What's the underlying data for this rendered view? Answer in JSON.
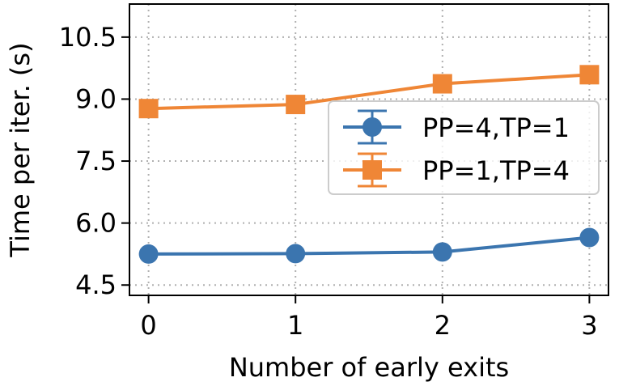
{
  "chart_data": {
    "type": "line",
    "title": "",
    "xlabel": "Number of early exits",
    "ylabel": "Time per iter. (s)",
    "x": [
      0,
      1,
      2,
      3
    ],
    "xticks": [
      "0",
      "1",
      "2",
      "3"
    ],
    "xlim": [
      -0.13,
      3.13
    ],
    "yticks": [
      "4.5",
      "6.0",
      "7.5",
      "9.0",
      "10.5"
    ],
    "ytick_values": [
      4.5,
      6.0,
      7.5,
      9.0,
      10.5
    ],
    "ylim": [
      4.25,
      11.3
    ],
    "grid": true,
    "legend_position": "center-right",
    "series": [
      {
        "name": "PP=4,TP=1",
        "values": [
          5.25,
          5.26,
          5.3,
          5.65
        ],
        "color": "#3b75af",
        "marker": "circle",
        "error_bars": true
      },
      {
        "name": "PP=1,TP=4",
        "values": [
          8.77,
          8.87,
          9.37,
          9.59
        ],
        "color": "#ef8636",
        "marker": "square",
        "error_bars": true
      }
    ]
  }
}
